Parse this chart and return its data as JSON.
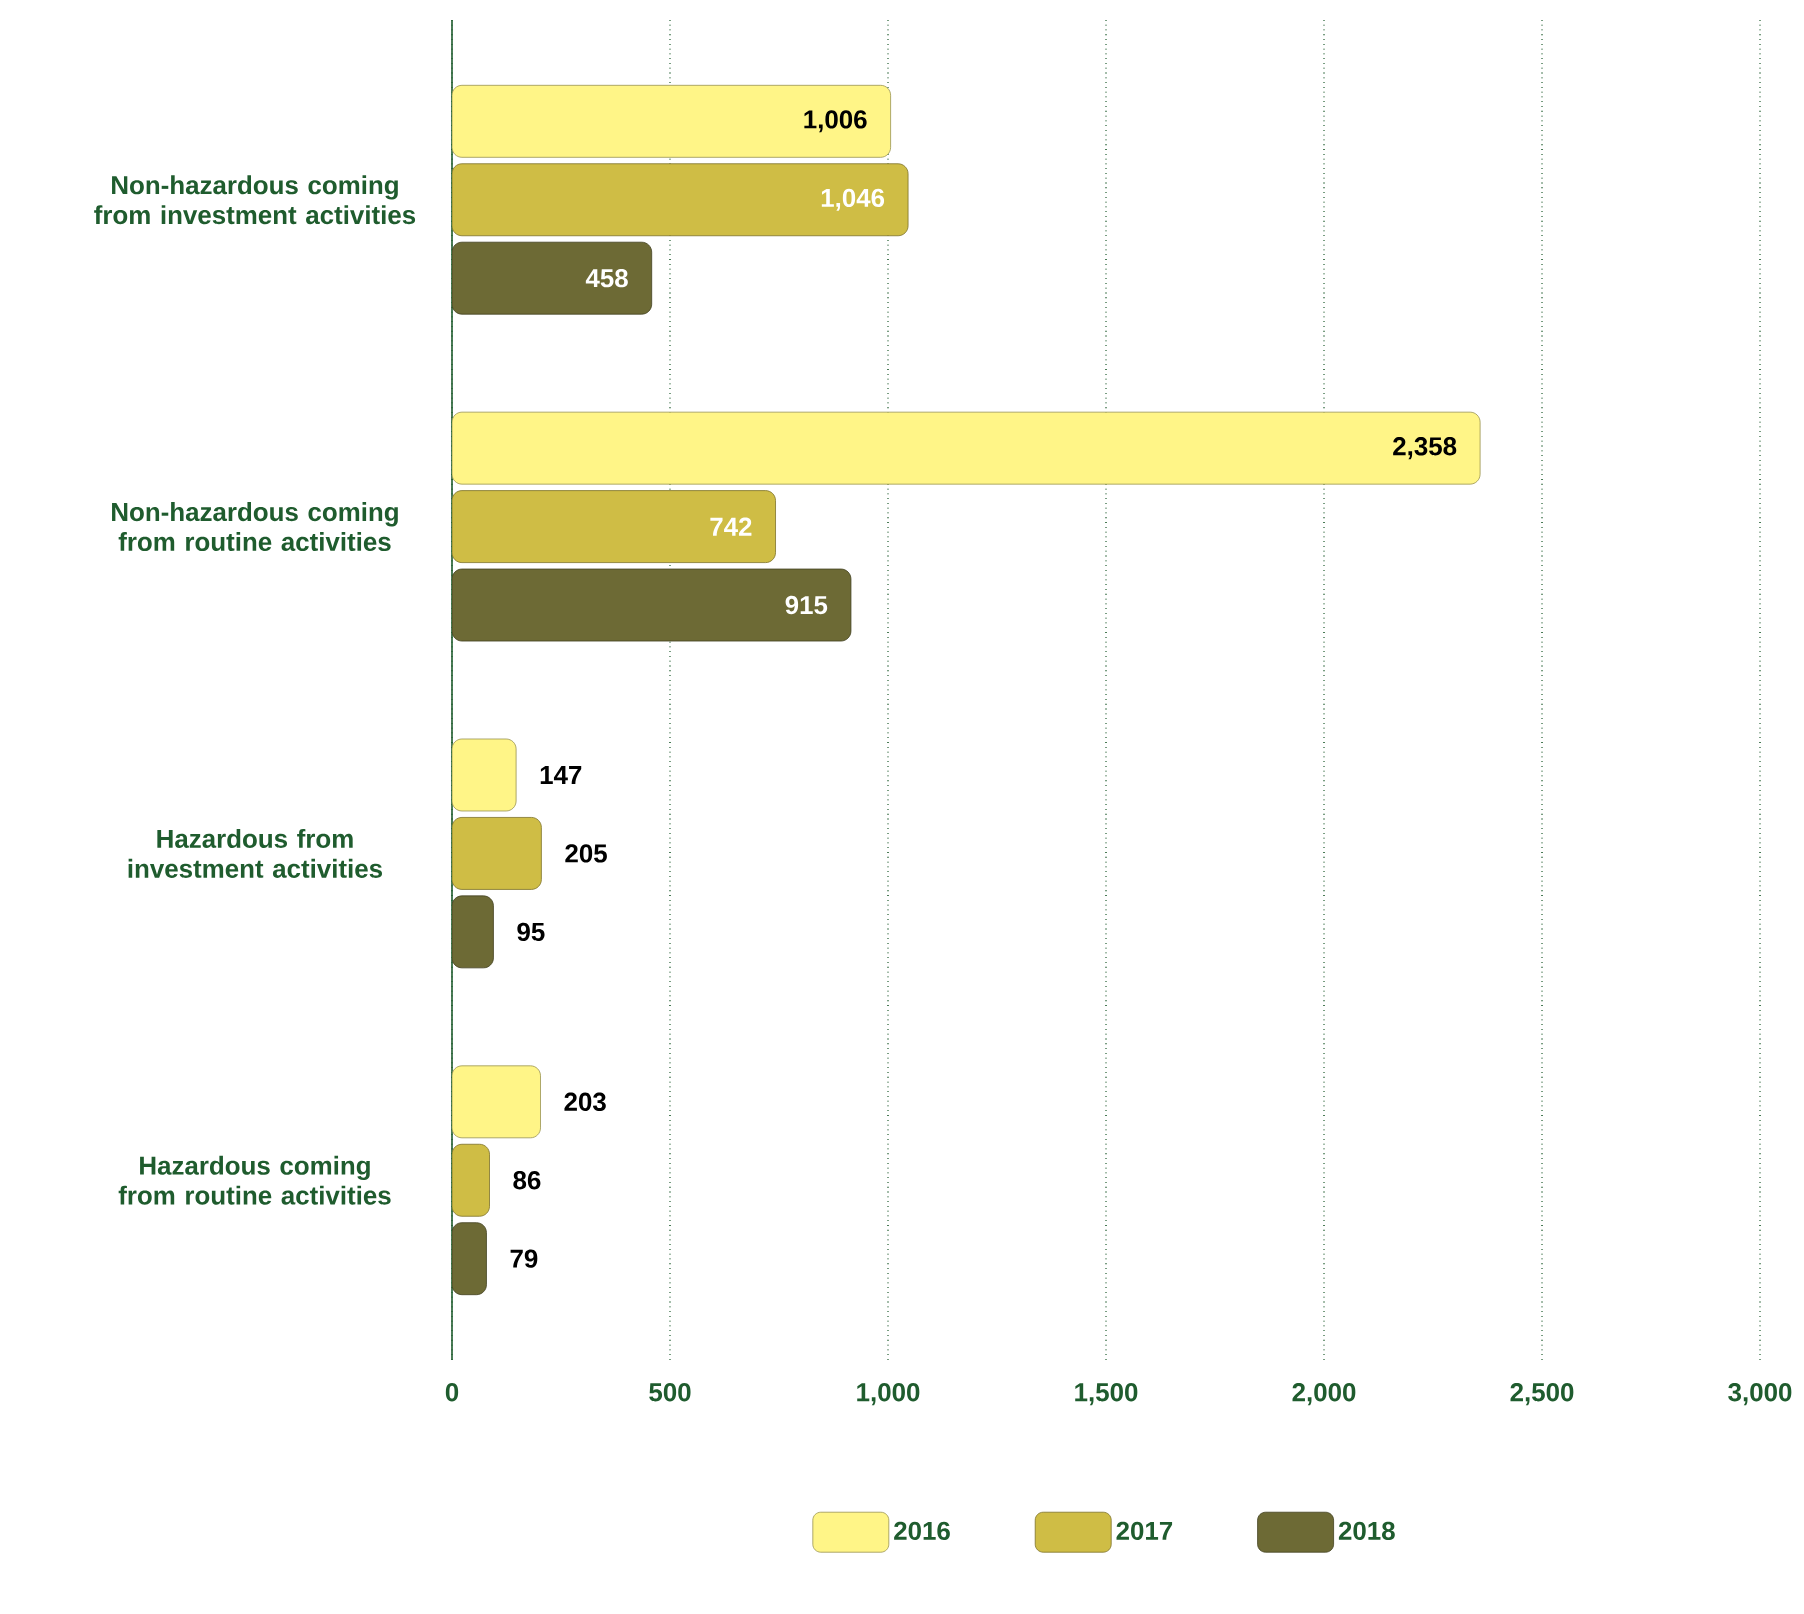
{
  "chart_data": {
    "type": "bar",
    "orientation": "horizontal",
    "categories": [
      "Non-hazardous coming from investment activities",
      "Non-hazardous coming from routine activities",
      "Hazardous from investment activities",
      "Hazardous coming from routine activities"
    ],
    "series": [
      {
        "name": "2016",
        "color": "#fff587",
        "values": [
          1006,
          2358,
          147,
          203
        ],
        "value_labels": [
          "1,006",
          "2,358",
          "147",
          "203"
        ]
      },
      {
        "name": "2017",
        "color": "#cfbd45",
        "values": [
          1046,
          742,
          205,
          86
        ],
        "value_labels": [
          "1,046",
          "742",
          "205",
          "86"
        ]
      },
      {
        "name": "2018",
        "color": "#6d6a35",
        "values": [
          458,
          915,
          95,
          79
        ],
        "value_labels": [
          "458",
          "915",
          "95",
          "79"
        ]
      }
    ],
    "xlim": [
      0,
      3000
    ],
    "xticks": [
      0,
      500,
      {
        "value": 1000,
        "label": "1,000"
      },
      {
        "value": 1500,
        "label": "1,500"
      },
      {
        "value": 2000,
        "label": "2,000"
      },
      {
        "value": 2500,
        "label": "2,500"
      },
      {
        "value": 3000,
        "label": "3,000"
      }
    ],
    "grid": "x",
    "legend": "bottom"
  }
}
